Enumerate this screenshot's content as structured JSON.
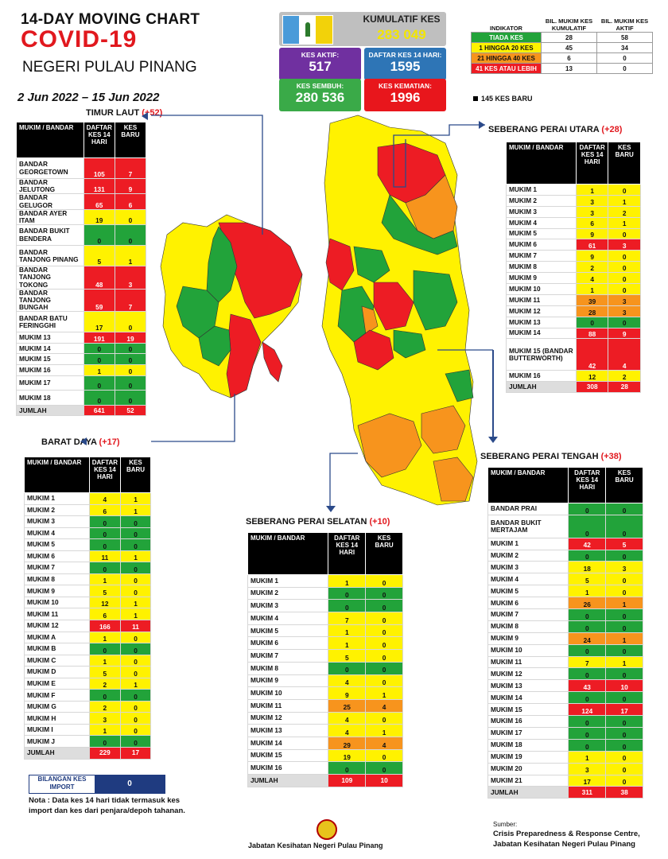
{
  "header": {
    "line1": "14-DAY MOVING CHART",
    "line2": "COVID-19",
    "line3": "NEGERI PULAU PINANG",
    "dates": "2 Jun 2022 – 15 Jun 2022"
  },
  "stats": {
    "kumulatif_label": "KUMULATIF KES",
    "kumulatif_value": "283 049",
    "aktif_label": "KES AKTIF:",
    "aktif_value": "517",
    "daftar_label": "DAFTAR KES 14 HARI:",
    "daftar_value": "1595",
    "sembuh_label": "KES SEMBUH:",
    "sembuh_value": "280 536",
    "kematian_label": "KES KEMATIAN:",
    "kematian_value": "1996"
  },
  "indicator": {
    "headers": [
      "INDIKATOR",
      "BIL. MUKIM KES KUMULATIF",
      "BIL. MUKIM KES AKTIF"
    ],
    "rows": [
      {
        "label": "TIADA KES",
        "kumulatif": "28",
        "aktif": "58"
      },
      {
        "label": "1 HINGGA 20 KES",
        "kumulatif": "45",
        "aktif": "34"
      },
      {
        "label": "21 HINGGA 40 KES",
        "kumulatif": "6",
        "aktif": "0"
      },
      {
        "label": "41 KES ATAU LEBIH",
        "kumulatif": "13",
        "aktif": "0"
      }
    ],
    "new_cases": "145 KES BARU"
  },
  "colors": {
    "green": "#22a33a",
    "yellow": "#fff200",
    "orange": "#f7941d",
    "red": "#ed1c24",
    "purple": "#7030a0",
    "blue": "#2e75b6"
  },
  "timur_laut": {
    "title": "TIMUR LAUT",
    "plus": "(+52)",
    "col_headers": [
      "MUKIM / BANDAR",
      "DAFTAR KES 14 HARI",
      "KES BARU"
    ],
    "rows": [
      {
        "name": "BANDAR GEORGETOWN",
        "daftar": "105",
        "baru": "7",
        "c": "red",
        "h": 2
      },
      {
        "name": "BANDAR JELUTONG",
        "daftar": "131",
        "baru": "9",
        "c": "red",
        "h": 1
      },
      {
        "name": "BANDAR GELUGOR",
        "daftar": "65",
        "baru": "6",
        "c": "red",
        "h": 1
      },
      {
        "name": "BANDAR AYER ITAM",
        "daftar": "19",
        "baru": "0",
        "c": "yellow",
        "h": 1
      },
      {
        "name": "BANDAR BUKIT BENDERA",
        "daftar": "0",
        "baru": "0",
        "c": "green",
        "h": 2
      },
      {
        "name": "BANDAR TANJONG PINANG",
        "daftar": "5",
        "baru": "1",
        "c": "yellow",
        "h": 2
      },
      {
        "name": "BANDAR TANJONG TOKONG",
        "daftar": "48",
        "baru": "3",
        "c": "red",
        "h": 2
      },
      {
        "name": "BANDAR TANJONG BUNGAH",
        "daftar": "59",
        "baru": "7",
        "c": "red",
        "h": 2
      },
      {
        "name": "BANDAR BATU FERINGGHI",
        "daftar": "17",
        "baru": "0",
        "c": "yellow",
        "h": 2
      },
      {
        "name": "MUKIM 13",
        "daftar": "191",
        "baru": "19",
        "c": "red",
        "h": 1
      },
      {
        "name": "MUKIM 14",
        "daftar": "0",
        "baru": "0",
        "c": "green",
        "h": 1
      },
      {
        "name": "MUKIM 15",
        "daftar": "0",
        "baru": "0",
        "c": "green",
        "h": 1
      },
      {
        "name": "MUKIM 16",
        "daftar": "1",
        "baru": "0",
        "c": "yellow",
        "h": 1
      },
      {
        "name": "MUKIM 17",
        "daftar": "0",
        "baru": "0",
        "c": "green",
        "h": 1.4
      },
      {
        "name": "MUKIM 18",
        "daftar": "0",
        "baru": "0",
        "c": "green",
        "h": 1.4
      }
    ],
    "total": {
      "name": "JUMLAH",
      "daftar": "641",
      "baru": "52"
    }
  },
  "barat_daya": {
    "title": "BARAT DAYA",
    "plus": "(+17)",
    "col_headers": [
      "MUKIM / BANDAR",
      "DAFTAR KES 14 HARI",
      "KES BARU"
    ],
    "rows": [
      {
        "name": "MUKIM 1",
        "daftar": "4",
        "baru": "1",
        "c": "yellow"
      },
      {
        "name": "MUKIM 2",
        "daftar": "6",
        "baru": "1",
        "c": "yellow"
      },
      {
        "name": "MUKIM 3",
        "daftar": "0",
        "baru": "0",
        "c": "green"
      },
      {
        "name": "MUKIM 4",
        "daftar": "0",
        "baru": "0",
        "c": "green"
      },
      {
        "name": "MUKIM 5",
        "daftar": "0",
        "baru": "0",
        "c": "green"
      },
      {
        "name": "MUKIM 6",
        "daftar": "11",
        "baru": "1",
        "c": "yellow"
      },
      {
        "name": "MUKIM 7",
        "daftar": "0",
        "baru": "0",
        "c": "green"
      },
      {
        "name": "MUKIM 8",
        "daftar": "1",
        "baru": "0",
        "c": "yellow"
      },
      {
        "name": "MUKIM 9",
        "daftar": "5",
        "baru": "0",
        "c": "yellow"
      },
      {
        "name": "MUKIM 10",
        "daftar": "12",
        "baru": "1",
        "c": "yellow"
      },
      {
        "name": "MUKIM 11",
        "daftar": "6",
        "baru": "1",
        "c": "yellow"
      },
      {
        "name": "MUKIM 12",
        "daftar": "166",
        "baru": "11",
        "c": "red"
      },
      {
        "name": "MUKIM A",
        "daftar": "1",
        "baru": "0",
        "c": "yellow"
      },
      {
        "name": "MUKIM B",
        "daftar": "0",
        "baru": "0",
        "c": "green"
      },
      {
        "name": "MUKIM C",
        "daftar": "1",
        "baru": "0",
        "c": "yellow"
      },
      {
        "name": "MUKIM D",
        "daftar": "5",
        "baru": "0",
        "c": "yellow"
      },
      {
        "name": "MUKIM E",
        "daftar": "2",
        "baru": "1",
        "c": "yellow"
      },
      {
        "name": "MUKIM F",
        "daftar": "0",
        "baru": "0",
        "c": "green"
      },
      {
        "name": "MUKIM G",
        "daftar": "2",
        "baru": "0",
        "c": "yellow"
      },
      {
        "name": "MUKIM H",
        "daftar": "3",
        "baru": "0",
        "c": "yellow"
      },
      {
        "name": "MUKIM I",
        "daftar": "1",
        "baru": "0",
        "c": "yellow"
      },
      {
        "name": "MUKIM J",
        "daftar": "0",
        "baru": "0",
        "c": "green"
      }
    ],
    "total": {
      "name": "JUMLAH",
      "daftar": "229",
      "baru": "17"
    }
  },
  "sp_utara": {
    "title": "SEBERANG PERAI UTARA",
    "plus": "(+28)",
    "col_headers": [
      "MUKIM / BANDAR",
      "DAFTAR KES 14 HARI",
      "KES BARU"
    ],
    "rows": [
      {
        "name": "MUKIM 1",
        "daftar": "1",
        "baru": "0",
        "c": "yellow",
        "h": 1
      },
      {
        "name": "MUKIM 2",
        "daftar": "3",
        "baru": "1",
        "c": "yellow",
        "h": 1
      },
      {
        "name": "MUKIM 3",
        "daftar": "3",
        "baru": "2",
        "c": "yellow",
        "h": 1
      },
      {
        "name": "MUKIM 4",
        "daftar": "6",
        "baru": "1",
        "c": "yellow",
        "h": 1
      },
      {
        "name": "MUKIM 5",
        "daftar": "9",
        "baru": "0",
        "c": "yellow",
        "h": 1
      },
      {
        "name": "MUKIM 6",
        "daftar": "61",
        "baru": "3",
        "c": "red",
        "h": 1
      },
      {
        "name": "MUKIM 7",
        "daftar": "9",
        "baru": "0",
        "c": "yellow",
        "h": 1
      },
      {
        "name": "MUKIM 8",
        "daftar": "2",
        "baru": "0",
        "c": "yellow",
        "h": 1
      },
      {
        "name": "MUKIM 9",
        "daftar": "4",
        "baru": "0",
        "c": "yellow",
        "h": 1
      },
      {
        "name": "MUKIM 10",
        "daftar": "1",
        "baru": "0",
        "c": "yellow",
        "h": 1
      },
      {
        "name": "MUKIM 11",
        "daftar": "39",
        "baru": "3",
        "c": "orange",
        "h": 1
      },
      {
        "name": "MUKIM 12",
        "daftar": "28",
        "baru": "3",
        "c": "orange",
        "h": 1
      },
      {
        "name": "MUKIM 13",
        "daftar": "0",
        "baru": "0",
        "c": "green",
        "h": 1
      },
      {
        "name": "MUKIM 14",
        "daftar": "88",
        "baru": "9",
        "c": "red",
        "h": 1
      },
      {
        "name": "MUKIM 15 (BANDAR BUTTERWORTH)",
        "daftar": "42",
        "baru": "4",
        "c": "red",
        "h": 3
      },
      {
        "name": "MUKIM 16",
        "daftar": "12",
        "baru": "2",
        "c": "yellow",
        "h": 1
      }
    ],
    "total": {
      "name": "JUMLAH",
      "daftar": "308",
      "baru": "28"
    }
  },
  "sp_tengah": {
    "title": "SEBERANG PERAI TENGAH",
    "plus": "(+38)",
    "col_headers": [
      "MUKIM / BANDAR",
      "DAFTAR KES 14 HARI",
      "KES BARU"
    ],
    "rows": [
      {
        "name": "BANDAR PRAI",
        "daftar": "0",
        "baru": "0",
        "c": "green",
        "h": 1
      },
      {
        "name": "BANDAR BUKIT MERTAJAM",
        "daftar": "0",
        "baru": "0",
        "c": "green",
        "h": 2
      },
      {
        "name": "MUKIM 1",
        "daftar": "42",
        "baru": "5",
        "c": "red",
        "h": 1
      },
      {
        "name": "MUKIM 2",
        "daftar": "0",
        "baru": "0",
        "c": "green",
        "h": 1
      },
      {
        "name": "MUKIM 3",
        "daftar": "18",
        "baru": "3",
        "c": "yellow",
        "h": 1
      },
      {
        "name": "MUKIM 4",
        "daftar": "5",
        "baru": "0",
        "c": "yellow",
        "h": 1
      },
      {
        "name": "MUKIM 5",
        "daftar": "1",
        "baru": "0",
        "c": "yellow",
        "h": 1
      },
      {
        "name": "MUKIM 6",
        "daftar": "26",
        "baru": "1",
        "c": "orange",
        "h": 1
      },
      {
        "name": "MUKIM 7",
        "daftar": "0",
        "baru": "0",
        "c": "green",
        "h": 1
      },
      {
        "name": "MUKIM 8",
        "daftar": "0",
        "baru": "0",
        "c": "green",
        "h": 1
      },
      {
        "name": "MUKIM 9",
        "daftar": "24",
        "baru": "1",
        "c": "orange",
        "h": 1
      },
      {
        "name": "MUKIM 10",
        "daftar": "0",
        "baru": "0",
        "c": "green",
        "h": 1
      },
      {
        "name": "MUKIM 11",
        "daftar": "7",
        "baru": "1",
        "c": "yellow",
        "h": 1
      },
      {
        "name": "MUKIM 12",
        "daftar": "0",
        "baru": "0",
        "c": "green",
        "h": 1
      },
      {
        "name": "MUKIM 13",
        "daftar": "43",
        "baru": "10",
        "c": "red",
        "h": 1
      },
      {
        "name": "MUKIM 14",
        "daftar": "0",
        "baru": "0",
        "c": "green",
        "h": 1
      },
      {
        "name": "MUKIM 15",
        "daftar": "124",
        "baru": "17",
        "c": "red",
        "h": 1
      },
      {
        "name": "MUKIM 16",
        "daftar": "0",
        "baru": "0",
        "c": "green",
        "h": 1
      },
      {
        "name": "MUKIM 17",
        "daftar": "0",
        "baru": "0",
        "c": "green",
        "h": 1
      },
      {
        "name": "MUKIM 18",
        "daftar": "0",
        "baru": "0",
        "c": "green",
        "h": 1
      },
      {
        "name": "MUKIM 19",
        "daftar": "1",
        "baru": "0",
        "c": "yellow",
        "h": 1
      },
      {
        "name": "MUKIM 20",
        "daftar": "3",
        "baru": "0",
        "c": "yellow",
        "h": 1
      },
      {
        "name": "MUKIM 21",
        "daftar": "17",
        "baru": "0",
        "c": "yellow",
        "h": 1
      }
    ],
    "total": {
      "name": "JUMLAH",
      "daftar": "311",
      "baru": "38"
    }
  },
  "sp_selatan": {
    "title": "SEBERANG PERAI SELATAN",
    "plus": "(+10)",
    "col_headers": [
      "MUKIM / BANDAR",
      "DAFTAR KES 14 HARI",
      "KES BARU"
    ],
    "rows": [
      {
        "name": "MUKIM 1",
        "daftar": "1",
        "baru": "0",
        "c": "yellow"
      },
      {
        "name": "MUKIM 2",
        "daftar": "0",
        "baru": "0",
        "c": "green"
      },
      {
        "name": "MUKIM 3",
        "daftar": "0",
        "baru": "0",
        "c": "green"
      },
      {
        "name": "MUKIM 4",
        "daftar": "7",
        "baru": "0",
        "c": "yellow"
      },
      {
        "name": "MUKIM 5",
        "daftar": "1",
        "baru": "0",
        "c": "yellow"
      },
      {
        "name": "MUKIM 6",
        "daftar": "1",
        "baru": "0",
        "c": "yellow"
      },
      {
        "name": "MUKIM 7",
        "daftar": "5",
        "baru": "0",
        "c": "yellow"
      },
      {
        "name": "MUKIM 8",
        "daftar": "0",
        "baru": "0",
        "c": "green"
      },
      {
        "name": "MUKIM 9",
        "daftar": "4",
        "baru": "0",
        "c": "yellow"
      },
      {
        "name": "MUKIM 10",
        "daftar": "9",
        "baru": "1",
        "c": "yellow"
      },
      {
        "name": "MUKIM 11",
        "daftar": "25",
        "baru": "4",
        "c": "orange"
      },
      {
        "name": "MUKIM 12",
        "daftar": "4",
        "baru": "0",
        "c": "yellow"
      },
      {
        "name": "MUKIM 13",
        "daftar": "4",
        "baru": "1",
        "c": "yellow"
      },
      {
        "name": "MUKIM 14",
        "daftar": "29",
        "baru": "4",
        "c": "orange"
      },
      {
        "name": "MUKIM 15",
        "daftar": "19",
        "baru": "0",
        "c": "yellow"
      },
      {
        "name": "MUKIM 16",
        "daftar": "0",
        "baru": "0",
        "c": "green"
      }
    ],
    "total": {
      "name": "JUMLAH",
      "daftar": "109",
      "baru": "10"
    }
  },
  "import": {
    "label": "BILANGAN KES IMPORT",
    "value": "0"
  },
  "note": "Nota : Data kes 14 hari tidak termasuk kes import dan kes dari penjara/depoh tahanan.",
  "footer": {
    "dept": "Jabatan Kesihatan Negeri Pulau Pinang",
    "source_label": "Sumber:",
    "source_line1": "Crisis Preparedness & Response Centre,",
    "source_line2": "Jabatan Kesihatan Negeri Pulau Pinang"
  }
}
